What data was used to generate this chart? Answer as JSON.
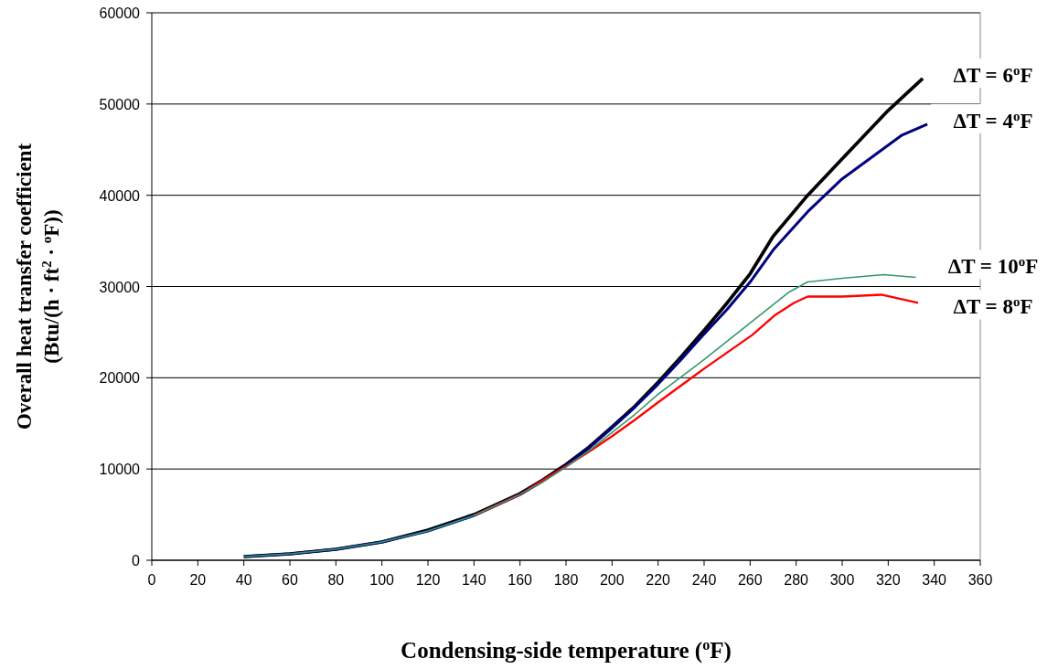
{
  "chart_data": {
    "type": "line",
    "xlabel": "Condensing-side temperature ($^{o}$F)",
    "ylabel": "Overall heat transfer coefficient\n(Btu/(h · ft$^{2}$ · $^{o}$F))",
    "xlim": [
      0,
      360
    ],
    "xticks": [
      0,
      20,
      40,
      60,
      80,
      100,
      120,
      140,
      160,
      180,
      200,
      220,
      240,
      260,
      280,
      300,
      320,
      340,
      360
    ],
    "ylim": [
      0,
      60000
    ],
    "yticks": [
      0,
      10000,
      20000,
      30000,
      40000,
      50000,
      60000
    ],
    "grid": "y",
    "marker": "none",
    "line_style": "solid",
    "series": [
      {
        "name": "ΔT = 6$^{o}$F",
        "color": "#000000",
        "x": [
          40,
          60,
          80,
          100,
          120,
          140,
          160,
          170,
          180,
          190,
          200,
          210,
          220,
          230,
          240,
          250,
          260,
          270,
          285,
          300,
          320,
          335
        ],
        "values": [
          400,
          700,
          1200,
          2000,
          3300,
          5000,
          7300,
          8800,
          10500,
          12400,
          14600,
          16900,
          19500,
          22300,
          25200,
          28200,
          31400,
          35500,
          40000,
          44000,
          49300,
          52800
        ]
      },
      {
        "name": "ΔT = 4$^{o}$F",
        "color": "#000080",
        "x": [
          40,
          60,
          80,
          100,
          120,
          140,
          160,
          170,
          180,
          190,
          200,
          210,
          220,
          230,
          240,
          250,
          260,
          270,
          285,
          300,
          326,
          337
        ],
        "values": [
          400,
          700,
          1200,
          2000,
          3200,
          4900,
          7200,
          8700,
          10400,
          12300,
          14500,
          16800,
          19300,
          22000,
          24800,
          27500,
          30500,
          34000,
          38200,
          41800,
          46600,
          47800
        ]
      },
      {
        "name": "ΔT = 8$^{o}$F",
        "color": "#ff0000",
        "x": [
          140,
          160,
          170,
          180,
          190,
          200,
          210,
          220,
          240,
          261,
          271,
          279,
          285,
          300,
          317,
          333
        ],
        "values": [
          4900,
          7200,
          8800,
          10300,
          11900,
          13600,
          15400,
          17300,
          21000,
          24700,
          26900,
          28200,
          28900,
          28900,
          29100,
          28200
        ]
      },
      {
        "name": "ΔT = 10$^{o}$F",
        "color": "#339966",
        "x": [
          40,
          60,
          80,
          100,
          120,
          140,
          160,
          170,
          180,
          190,
          200,
          210,
          220,
          240,
          260,
          270,
          277,
          285,
          300,
          318,
          332
        ],
        "values": [
          400,
          700,
          1200,
          2000,
          3200,
          4900,
          7200,
          8600,
          10200,
          12000,
          14000,
          16000,
          18200,
          22000,
          26000,
          28000,
          29400,
          30500,
          30900,
          31300,
          31000
        ]
      }
    ]
  }
}
